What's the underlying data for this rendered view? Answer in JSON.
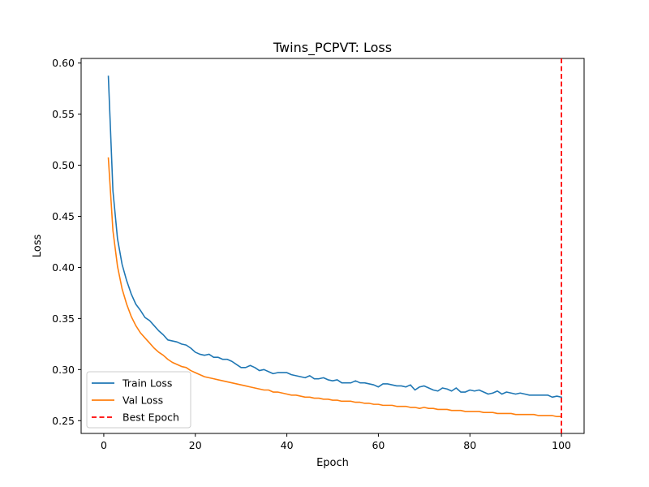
{
  "chart_data": {
    "type": "line",
    "title": "Twins_PCPVT: Loss",
    "xlabel": "Epoch",
    "ylabel": "Loss",
    "xlim": [
      -4.95,
      104.95
    ],
    "ylim": [
      0.2375,
      0.6045
    ],
    "xticks": [
      0,
      20,
      40,
      60,
      80,
      100
    ],
    "xtick_labels": [
      "0",
      "20",
      "40",
      "60",
      "80",
      "100"
    ],
    "yticks": [
      0.25,
      0.3,
      0.35,
      0.4,
      0.45,
      0.5,
      0.55,
      0.6
    ],
    "ytick_labels": [
      "0.25",
      "0.30",
      "0.35",
      "0.40",
      "0.45",
      "0.50",
      "0.55",
      "0.60"
    ],
    "grid": false,
    "legend_position": "lower-left",
    "x": [
      1,
      2,
      3,
      4,
      5,
      6,
      7,
      8,
      9,
      10,
      11,
      12,
      13,
      14,
      15,
      16,
      17,
      18,
      19,
      20,
      21,
      22,
      23,
      24,
      25,
      26,
      27,
      28,
      29,
      30,
      31,
      32,
      33,
      34,
      35,
      36,
      37,
      38,
      39,
      40,
      41,
      42,
      43,
      44,
      45,
      46,
      47,
      48,
      49,
      50,
      51,
      52,
      53,
      54,
      55,
      56,
      57,
      58,
      59,
      60,
      61,
      62,
      63,
      64,
      65,
      66,
      67,
      68,
      69,
      70,
      71,
      72,
      73,
      74,
      75,
      76,
      77,
      78,
      79,
      80,
      81,
      82,
      83,
      84,
      85,
      86,
      87,
      88,
      89,
      90,
      91,
      92,
      93,
      94,
      95,
      96,
      97,
      98,
      99,
      100
    ],
    "series": [
      {
        "name": "Train Loss",
        "color": "#1f77b4",
        "style": "solid",
        "values": [
          0.587,
          0.475,
          0.428,
          0.403,
          0.387,
          0.374,
          0.364,
          0.358,
          0.351,
          0.348,
          0.343,
          0.338,
          0.334,
          0.329,
          0.328,
          0.327,
          0.325,
          0.324,
          0.321,
          0.317,
          0.315,
          0.314,
          0.315,
          0.312,
          0.312,
          0.31,
          0.31,
          0.308,
          0.305,
          0.302,
          0.302,
          0.304,
          0.302,
          0.299,
          0.3,
          0.298,
          0.296,
          0.297,
          0.297,
          0.297,
          0.295,
          0.294,
          0.293,
          0.292,
          0.294,
          0.291,
          0.291,
          0.292,
          0.29,
          0.289,
          0.29,
          0.287,
          0.287,
          0.287,
          0.289,
          0.287,
          0.287,
          0.286,
          0.285,
          0.283,
          0.286,
          0.286,
          0.285,
          0.284,
          0.284,
          0.283,
          0.285,
          0.28,
          0.283,
          0.284,
          0.282,
          0.28,
          0.279,
          0.282,
          0.281,
          0.279,
          0.282,
          0.278,
          0.278,
          0.28,
          0.279,
          0.28,
          0.278,
          0.276,
          0.277,
          0.279,
          0.276,
          0.278,
          0.277,
          0.276,
          0.277,
          0.276,
          0.275,
          0.275,
          0.275,
          0.275,
          0.275,
          0.273,
          0.274,
          0.273
        ]
      },
      {
        "name": "Val Loss",
        "color": "#ff7f0e",
        "style": "solid",
        "values": [
          0.507,
          0.436,
          0.401,
          0.379,
          0.364,
          0.352,
          0.343,
          0.336,
          0.331,
          0.326,
          0.321,
          0.317,
          0.314,
          0.31,
          0.307,
          0.305,
          0.303,
          0.302,
          0.299,
          0.297,
          0.295,
          0.293,
          0.292,
          0.291,
          0.29,
          0.289,
          0.288,
          0.287,
          0.286,
          0.285,
          0.284,
          0.283,
          0.282,
          0.281,
          0.28,
          0.28,
          0.278,
          0.278,
          0.277,
          0.276,
          0.275,
          0.275,
          0.274,
          0.273,
          0.273,
          0.272,
          0.272,
          0.271,
          0.271,
          0.27,
          0.27,
          0.269,
          0.269,
          0.269,
          0.268,
          0.268,
          0.267,
          0.267,
          0.266,
          0.266,
          0.265,
          0.265,
          0.265,
          0.264,
          0.264,
          0.264,
          0.263,
          0.263,
          0.262,
          0.263,
          0.262,
          0.262,
          0.261,
          0.261,
          0.261,
          0.26,
          0.26,
          0.26,
          0.259,
          0.259,
          0.259,
          0.259,
          0.258,
          0.258,
          0.258,
          0.257,
          0.257,
          0.257,
          0.257,
          0.256,
          0.256,
          0.256,
          0.256,
          0.256,
          0.255,
          0.255,
          0.255,
          0.255,
          0.254,
          0.254
        ]
      }
    ],
    "annotations": [
      {
        "type": "vline",
        "name": "Best Epoch",
        "x": 100,
        "color": "#ff0000",
        "style": "dashed"
      }
    ],
    "legend": [
      "Train Loss",
      "Val Loss",
      "Best Epoch"
    ]
  }
}
